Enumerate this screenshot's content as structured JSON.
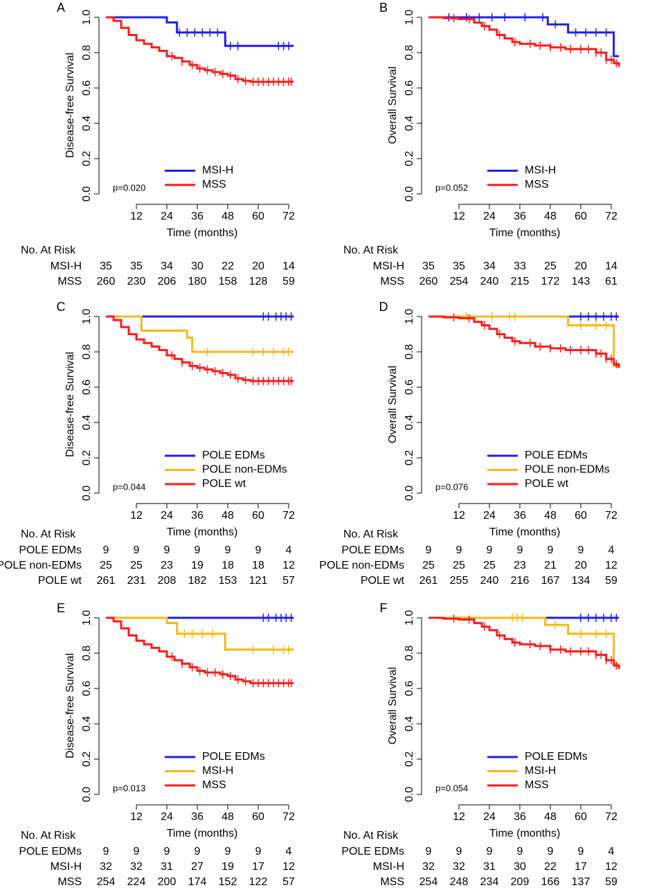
{
  "chart_data": [
    {
      "type": "line",
      "step": true,
      "panel": "A",
      "ylabel": "Disease-free Survival",
      "xlabel": "Time (months)",
      "annotation": "p=0.020",
      "legend": "lower center",
      "xlim": [
        0,
        75
      ],
      "xticks": [
        12,
        24,
        36,
        48,
        60,
        72
      ],
      "ylim": [
        0,
        1
      ],
      "yticks": [
        {
          "value": 0,
          "label": "0.0"
        },
        0.2,
        0.4,
        0.6,
        0.8,
        {
          "value": 1,
          "label": "1.0"
        }
      ],
      "series": [
        {
          "name": "MSI-H",
          "color": "#1f1fe6",
          "x": [
            0,
            24,
            28,
            47,
            74
          ],
          "values": [
            1,
            0.971,
            0.914,
            0.838,
            0.838
          ],
          "censored": [
            29,
            32,
            35,
            38,
            41,
            44,
            49,
            52,
            68,
            70,
            72
          ]
        },
        {
          "name": "MSS",
          "color": "#ff1a1a",
          "x": [
            0,
            3,
            6,
            9,
            12,
            15,
            18,
            21,
            24,
            27,
            30,
            33,
            36,
            39,
            42,
            45,
            48,
            51,
            54,
            57,
            74
          ],
          "values": [
            1,
            0.98,
            0.94,
            0.9,
            0.87,
            0.85,
            0.83,
            0.81,
            0.78,
            0.77,
            0.75,
            0.73,
            0.71,
            0.7,
            0.69,
            0.68,
            0.67,
            0.65,
            0.64,
            0.635,
            0.635
          ],
          "censored": [
            26,
            30,
            34,
            37,
            40,
            43,
            46,
            49,
            52,
            55,
            58,
            60,
            62,
            64,
            66,
            68,
            70,
            72,
            73
          ]
        }
      ],
      "risk_table": {
        "title": "No. At Risk",
        "rows": [
          {
            "name": "MSI-H",
            "counts": [
              35,
              35,
              34,
              30,
              22,
              20,
              14
            ]
          },
          {
            "name": "MSS",
            "counts": [
              260,
              230,
              206,
              180,
              158,
              128,
              59
            ]
          }
        ]
      }
    },
    {
      "type": "line",
      "step": true,
      "panel": "B",
      "ylabel": "Overall Survival",
      "xlabel": "Time (months)",
      "annotation": "p=0.052",
      "legend": "lower center",
      "xlim": [
        0,
        75
      ],
      "xticks": [
        12,
        24,
        36,
        48,
        60,
        72
      ],
      "ylim": [
        0,
        1
      ],
      "yticks": [
        {
          "value": 0,
          "label": "0.0"
        },
        0.2,
        0.4,
        0.6,
        0.8,
        {
          "value": 1,
          "label": "1.0"
        }
      ],
      "series": [
        {
          "name": "MSI-H",
          "color": "#1f1fe6",
          "x": [
            0,
            47,
            55,
            73,
            75
          ],
          "values": [
            1,
            0.96,
            0.914,
            0.78,
            0.78
          ],
          "censored": [
            8,
            15,
            20,
            25,
            30,
            38,
            45,
            50,
            58,
            62,
            66,
            70
          ]
        },
        {
          "name": "MSS",
          "color": "#ff1a1a",
          "x": [
            0,
            6,
            12,
            18,
            21,
            24,
            27,
            30,
            33,
            36,
            42,
            48,
            54,
            60,
            66,
            70,
            73,
            75
          ],
          "values": [
            1,
            0.995,
            0.99,
            0.97,
            0.95,
            0.93,
            0.9,
            0.88,
            0.86,
            0.85,
            0.84,
            0.83,
            0.82,
            0.82,
            0.8,
            0.76,
            0.74,
            0.72
          ],
          "censored": [
            10,
            16,
            22,
            28,
            34,
            40,
            44,
            48,
            52,
            56,
            60,
            63,
            66,
            68,
            70,
            72,
            74
          ]
        }
      ],
      "risk_table": {
        "title": "No. At Risk",
        "rows": [
          {
            "name": "MSI-H",
            "counts": [
              35,
              35,
              34,
              33,
              25,
              20,
              14
            ]
          },
          {
            "name": "MSS",
            "counts": [
              260,
              254,
              240,
              215,
              172,
              143,
              61
            ]
          }
        ]
      }
    },
    {
      "type": "line",
      "step": true,
      "panel": "C",
      "ylabel": "Disease-free Survival",
      "xlabel": "Time (months)",
      "annotation": "p=0.044",
      "legend": "lower center",
      "xlim": [
        0,
        75
      ],
      "xticks": [
        12,
        24,
        36,
        48,
        60,
        72
      ],
      "ylim": [
        0,
        1
      ],
      "yticks": [
        {
          "value": 0,
          "label": "0.0"
        },
        0.2,
        0.4,
        0.6,
        0.8,
        {
          "value": 1,
          "label": "1.0"
        }
      ],
      "series": [
        {
          "name": "POLE EDMs",
          "color": "#1f1fe6",
          "x": [
            0,
            74
          ],
          "values": [
            1,
            1
          ],
          "censored": [
            62,
            64,
            67,
            69,
            71,
            73
          ]
        },
        {
          "name": "POLE non-EDMs",
          "color": "#f6b816",
          "x": [
            0,
            14,
            32,
            34,
            74
          ],
          "values": [
            1,
            0.92,
            0.88,
            0.8,
            0.8
          ],
          "censored": [
            40,
            58,
            62,
            66,
            70,
            72
          ]
        },
        {
          "name": "POLE wt",
          "color": "#ff1a1a",
          "x": [
            0,
            3,
            6,
            9,
            12,
            15,
            18,
            21,
            24,
            27,
            30,
            33,
            36,
            39,
            42,
            45,
            48,
            51,
            54,
            57,
            74
          ],
          "values": [
            1,
            0.98,
            0.94,
            0.9,
            0.87,
            0.85,
            0.83,
            0.81,
            0.78,
            0.76,
            0.74,
            0.72,
            0.71,
            0.7,
            0.69,
            0.68,
            0.67,
            0.65,
            0.64,
            0.635,
            0.635
          ],
          "censored": [
            26,
            30,
            34,
            37,
            40,
            43,
            46,
            49,
            52,
            55,
            58,
            60,
            62,
            64,
            66,
            68,
            70,
            72,
            73
          ]
        }
      ],
      "risk_table": {
        "title": "No. At Risk",
        "rows": [
          {
            "name": "POLE EDMs",
            "counts": [
              9,
              9,
              9,
              9,
              9,
              9,
              4
            ]
          },
          {
            "name": "POLE non-EDMs",
            "counts": [
              25,
              25,
              23,
              19,
              18,
              18,
              12
            ]
          },
          {
            "name": "POLE wt",
            "counts": [
              261,
              231,
              208,
              182,
              153,
              121,
              57
            ]
          }
        ]
      }
    },
    {
      "type": "line",
      "step": true,
      "panel": "D",
      "ylabel": "Overall Survival",
      "xlabel": "Time (months)",
      "annotation": "p=0.076",
      "legend": "lower center",
      "xlim": [
        0,
        75
      ],
      "xticks": [
        12,
        24,
        36,
        48,
        60,
        72
      ],
      "ylim": [
        0,
        1
      ],
      "yticks": [
        {
          "value": 0,
          "label": "0.0"
        },
        0.2,
        0.4,
        0.6,
        0.8,
        {
          "value": 1,
          "label": "1.0"
        }
      ],
      "series": [
        {
          "name": "POLE EDMs",
          "color": "#1f1fe6",
          "x": [
            0,
            75
          ],
          "values": [
            1,
            1
          ],
          "censored": [
            60,
            63,
            66,
            69,
            72,
            74
          ]
        },
        {
          "name": "POLE non-EDMs",
          "color": "#f6b816",
          "x": [
            0,
            55,
            73,
            75
          ],
          "values": [
            1,
            0.95,
            0.72,
            0.72
          ],
          "censored": [
            15,
            25,
            32,
            34,
            60,
            66,
            70
          ]
        },
        {
          "name": "POLE wt",
          "color": "#ff1a1a",
          "x": [
            0,
            6,
            12,
            18,
            21,
            24,
            27,
            30,
            33,
            36,
            42,
            48,
            54,
            60,
            66,
            70,
            73,
            75
          ],
          "values": [
            1,
            0.995,
            0.99,
            0.97,
            0.95,
            0.93,
            0.9,
            0.88,
            0.86,
            0.85,
            0.83,
            0.82,
            0.81,
            0.81,
            0.79,
            0.76,
            0.73,
            0.71
          ],
          "censored": [
            10,
            16,
            22,
            28,
            34,
            40,
            44,
            48,
            52,
            56,
            60,
            63,
            66,
            68,
            70,
            72,
            74
          ]
        }
      ],
      "risk_table": {
        "title": "No. At Risk",
        "rows": [
          {
            "name": "POLE EDMs",
            "counts": [
              9,
              9,
              9,
              9,
              9,
              9,
              4
            ]
          },
          {
            "name": "POLE non-EDMs",
            "counts": [
              25,
              25,
              25,
              23,
              21,
              20,
              12
            ]
          },
          {
            "name": "POLE wt",
            "counts": [
              261,
              255,
              240,
              216,
              167,
              134,
              59
            ]
          }
        ]
      }
    },
    {
      "type": "line",
      "step": true,
      "panel": "E",
      "ylabel": "Disease-free Survival",
      "xlabel": "Time (months)",
      "annotation": "p=0.013",
      "legend": "lower center",
      "xlim": [
        0,
        75
      ],
      "xticks": [
        12,
        24,
        36,
        48,
        60,
        72
      ],
      "ylim": [
        0,
        1
      ],
      "yticks": [
        {
          "value": 0,
          "label": "0.0"
        },
        0.2,
        0.4,
        0.6,
        0.8,
        {
          "value": 1,
          "label": "1.0"
        }
      ],
      "series": [
        {
          "name": "POLE EDMs",
          "color": "#1f1fe6",
          "x": [
            0,
            74
          ],
          "values": [
            1,
            1
          ],
          "censored": [
            62,
            64,
            67,
            69,
            71,
            73
          ]
        },
        {
          "name": "MSI-H",
          "color": "#f6b816",
          "x": [
            0,
            24,
            28,
            47,
            74
          ],
          "values": [
            1,
            0.97,
            0.91,
            0.82,
            0.82
          ],
          "censored": [
            31,
            34,
            38,
            42,
            58,
            66,
            70,
            72
          ]
        },
        {
          "name": "MSS",
          "color": "#ff1a1a",
          "x": [
            0,
            3,
            6,
            9,
            12,
            15,
            18,
            21,
            24,
            27,
            30,
            33,
            36,
            39,
            42,
            45,
            48,
            51,
            54,
            57,
            74
          ],
          "values": [
            1,
            0.98,
            0.94,
            0.9,
            0.87,
            0.85,
            0.83,
            0.81,
            0.78,
            0.76,
            0.74,
            0.72,
            0.7,
            0.69,
            0.69,
            0.68,
            0.67,
            0.65,
            0.64,
            0.63,
            0.63
          ],
          "censored": [
            26,
            30,
            34,
            37,
            40,
            43,
            46,
            49,
            52,
            55,
            58,
            60,
            62,
            64,
            66,
            68,
            70,
            72,
            73
          ]
        }
      ],
      "risk_table": {
        "title": "No. At Risk",
        "rows": [
          {
            "name": "POLE EDMs",
            "counts": [
              9,
              9,
              9,
              9,
              9,
              9,
              4
            ]
          },
          {
            "name": "MSI-H",
            "counts": [
              32,
              32,
              31,
              27,
              19,
              17,
              12
            ]
          },
          {
            "name": "MSS",
            "counts": [
              254,
              224,
              200,
              174,
              152,
              122,
              57
            ]
          }
        ]
      }
    },
    {
      "type": "line",
      "step": true,
      "panel": "F",
      "ylabel": "Overall Survival",
      "xlabel": "Time (months)",
      "annotation": "p=0.054",
      "legend": "lower center",
      "xlim": [
        0,
        75
      ],
      "xticks": [
        12,
        24,
        36,
        48,
        60,
        72
      ],
      "ylim": [
        0,
        1
      ],
      "yticks": [
        {
          "value": 0,
          "label": "0.0"
        },
        0.2,
        0.4,
        0.6,
        0.8,
        {
          "value": 1,
          "label": "1.0"
        }
      ],
      "series": [
        {
          "name": "POLE EDMs",
          "color": "#1f1fe6",
          "x": [
            0,
            75
          ],
          "values": [
            1,
            1
          ],
          "censored": [
            60,
            63,
            66,
            69,
            72,
            74
          ]
        },
        {
          "name": "MSI-H",
          "color": "#f6b816",
          "x": [
            0,
            46,
            55,
            73,
            75
          ],
          "values": [
            1,
            0.96,
            0.91,
            0.74,
            0.74
          ],
          "censored": [
            33,
            35,
            37,
            50,
            60,
            66,
            70
          ]
        },
        {
          "name": "MSS",
          "color": "#ff1a1a",
          "x": [
            0,
            6,
            12,
            18,
            21,
            24,
            27,
            30,
            33,
            36,
            42,
            48,
            54,
            60,
            66,
            70,
            73,
            75
          ],
          "values": [
            1,
            0.995,
            0.99,
            0.97,
            0.95,
            0.93,
            0.9,
            0.88,
            0.86,
            0.85,
            0.84,
            0.82,
            0.81,
            0.81,
            0.79,
            0.76,
            0.73,
            0.71
          ],
          "censored": [
            10,
            16,
            22,
            28,
            34,
            40,
            44,
            48,
            52,
            56,
            60,
            63,
            66,
            68,
            70,
            72,
            74
          ]
        }
      ],
      "risk_table": {
        "title": "No. At Risk",
        "rows": [
          {
            "name": "POLE EDMs",
            "counts": [
              9,
              9,
              9,
              9,
              9,
              9,
              4
            ]
          },
          {
            "name": "MSI-H",
            "counts": [
              32,
              32,
              31,
              30,
              22,
              17,
              12
            ]
          },
          {
            "name": "MSS",
            "counts": [
              254,
              248,
              234,
              209,
              166,
              137,
              59
            ]
          }
        ]
      }
    }
  ]
}
